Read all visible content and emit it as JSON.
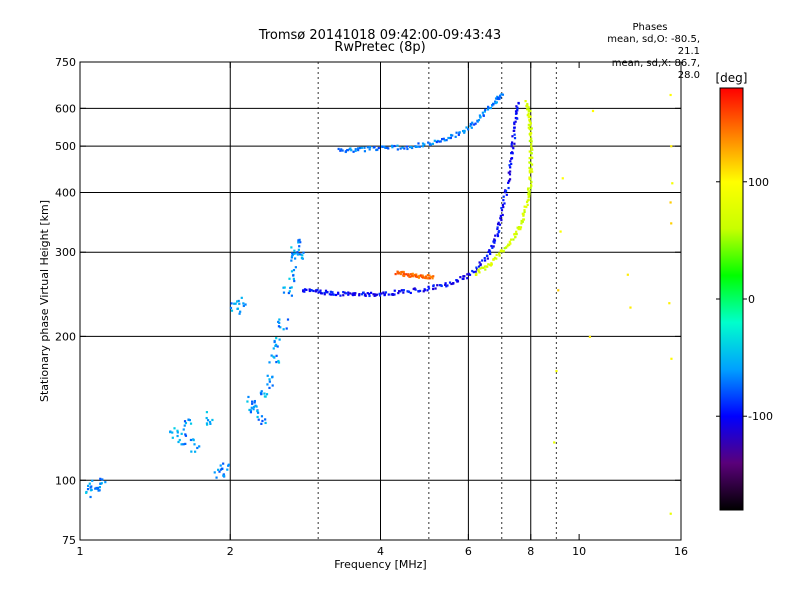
{
  "header": {
    "title": "Tromsø 20141018 09:42:00-09:43:43",
    "subtitle": "RwPretec (8p)"
  },
  "phase_stats": {
    "heading": "Phases",
    "line_o": "mean, sd,O: -80.5, 21.1",
    "line_x": "mean, sd,X: 86.7, 28.0"
  },
  "chart_data": {
    "type": "scatter",
    "xlabel": "Frequency [MHz]",
    "ylabel": "Stationary phase Virtual Height [km]",
    "xscale": "log",
    "yscale": "log",
    "xlim": [
      1,
      16
    ],
    "ylim": [
      75,
      750
    ],
    "xticks": [
      1,
      2,
      4,
      6,
      8,
      10,
      16
    ],
    "yticks": [
      75,
      100,
      200,
      300,
      400,
      500,
      600,
      750
    ],
    "grid_x": [
      2,
      4,
      6,
      8
    ],
    "grid_y": [
      100,
      200,
      300,
      400,
      500,
      600
    ],
    "minor_x": [
      3,
      5,
      7,
      9
    ],
    "colorbar": {
      "label": "[deg]",
      "range": [
        -180,
        180
      ],
      "ticks": [
        100,
        0,
        -100
      ],
      "colors": [
        "#000000",
        "#5a007a",
        "#0000ff",
        "#00a0ff",
        "#00ffcc",
        "#00ff00",
        "#c8ff00",
        "#ffff00",
        "#ff8000",
        "#ff0000"
      ]
    },
    "series": [
      {
        "points": [
          [
            1.05,
            97
          ],
          [
            1.07,
            95
          ],
          [
            1.1,
            98
          ],
          [
            1.55,
            125
          ],
          [
            1.6,
            122
          ],
          [
            1.65,
            130
          ],
          [
            1.7,
            118
          ],
          [
            1.8,
            135
          ],
          [
            1.9,
            103
          ],
          [
            1.95,
            105
          ],
          [
            2.05,
            230
          ],
          [
            2.1,
            235
          ],
          [
            2.2,
            145
          ],
          [
            2.25,
            140
          ],
          [
            2.3,
            135
          ],
          [
            2.35,
            150
          ],
          [
            2.4,
            160
          ],
          [
            2.45,
            180
          ],
          [
            2.5,
            195
          ],
          [
            2.55,
            210
          ],
          [
            2.6,
            250
          ],
          [
            2.65,
            270
          ],
          [
            2.7,
            290
          ],
          [
            2.75,
            300
          ],
          [
            2.7,
            310
          ]
        ],
        "phase": -60
      },
      {
        "points": [
          [
            2.8,
            250
          ],
          [
            3.0,
            248
          ],
          [
            3.2,
            246
          ],
          [
            3.5,
            245
          ],
          [
            3.8,
            245
          ],
          [
            4.1,
            246
          ],
          [
            4.5,
            248
          ],
          [
            5.0,
            252
          ],
          [
            5.5,
            258
          ],
          [
            6.0,
            268
          ],
          [
            6.5,
            290
          ],
          [
            6.8,
            320
          ],
          [
            7.0,
            360
          ],
          [
            7.2,
            420
          ],
          [
            7.35,
            490
          ],
          [
            7.45,
            560
          ],
          [
            7.55,
            620
          ]
        ],
        "phase": -100
      },
      {
        "points": [
          [
            3.3,
            490
          ],
          [
            3.6,
            492
          ],
          [
            4.0,
            495
          ],
          [
            4.5,
            498
          ],
          [
            5.0,
            505
          ],
          [
            5.5,
            520
          ],
          [
            6.0,
            545
          ],
          [
            6.4,
            580
          ],
          [
            6.8,
            620
          ],
          [
            7.0,
            640
          ]
        ],
        "phase": -70
      },
      {
        "points": [
          [
            6.2,
            270
          ],
          [
            6.6,
            282
          ],
          [
            7.0,
            300
          ],
          [
            7.4,
            320
          ],
          [
            7.7,
            350
          ],
          [
            7.9,
            390
          ],
          [
            8.0,
            430
          ],
          [
            8.0,
            480
          ],
          [
            8.0,
            530
          ],
          [
            7.95,
            580
          ],
          [
            7.85,
            620
          ]
        ],
        "phase": 70
      },
      {
        "points": [
          [
            4.3,
            272
          ],
          [
            4.5,
            270
          ],
          [
            4.7,
            268
          ],
          [
            4.9,
            267
          ],
          [
            5.1,
            267
          ]
        ],
        "phase": 150
      },
      {
        "points": [
          [
            15.2,
            640
          ],
          [
            15.3,
            500
          ],
          [
            15.3,
            420
          ],
          [
            15.2,
            380
          ],
          [
            15.3,
            345
          ],
          [
            15.2,
            235
          ],
          [
            15.3,
            180
          ],
          [
            15.2,
            85
          ],
          [
            12.5,
            270
          ],
          [
            12.7,
            230
          ],
          [
            10.7,
            590
          ],
          [
            10.5,
            200
          ],
          [
            9.3,
            430
          ],
          [
            9.2,
            330
          ],
          [
            9.1,
            250
          ],
          [
            9.0,
            170
          ],
          [
            8.9,
            120
          ]
        ],
        "phase": 100
      }
    ]
  }
}
